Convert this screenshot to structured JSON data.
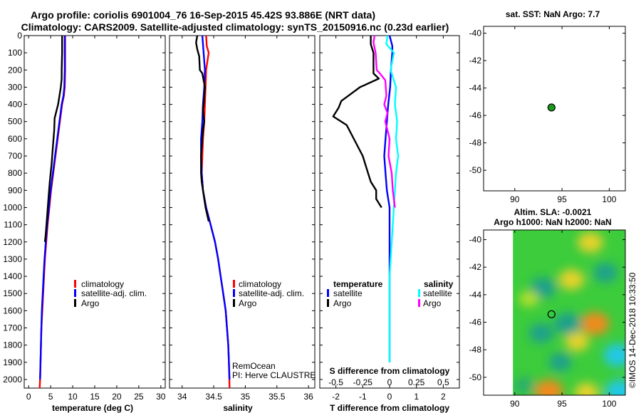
{
  "header": {
    "line1": "Argo profile: coriolis 6901004_76 16-Sep-2015 45.42S 93.886E (NRT data)",
    "line2": "Climatology: CARS2009. Satellite-adjusted climatology: synTS_20150916.nc (0.23d earlier)"
  },
  "colors": {
    "climatology": "#ff0000",
    "satellite": "#0000ff",
    "argo": "#000000",
    "sal_satellite": "#00ffff",
    "sal_argo": "#ff00ff",
    "float_marker": "#1a9a1a"
  },
  "legend": {
    "climatology": "climatology",
    "satellite_adj": "satellite-adj. clim.",
    "argo": "Argo",
    "temperature": "temperature",
    "salinity": "salinity",
    "satellite": "satellite"
  },
  "notes": {
    "remocean": "RemOcean",
    "pi": "PI: Herve CLAUSTRE",
    "credit": "©IMOS 14-Dec-2018 10:33:50",
    "sst": "sat. SST: NaN Argo: 7.7",
    "sla_line1": "Altim. SLA: -0.0021",
    "sla_line2": "Argo h1000: NaN h2000: NaN"
  },
  "chart_data": [
    {
      "type": "line",
      "panel": "temperature",
      "xlabel": "temperature (deg C)",
      "ylabel": "pressure",
      "xlim": [
        -1,
        31
      ],
      "ylim": [
        2050,
        0
      ],
      "xticks": [
        0,
        5,
        10,
        15,
        20,
        25,
        30
      ],
      "xtick_labels": [
        "0",
        "5",
        "10",
        "15",
        "20",
        "25",
        "30"
      ],
      "yticks": [
        0,
        100,
        200,
        300,
        400,
        500,
        600,
        700,
        800,
        900,
        1000,
        1100,
        1200,
        1300,
        1400,
        1500,
        1600,
        1700,
        1800,
        1900,
        2000
      ],
      "ytick_labels": [
        "0",
        "100",
        "200",
        "300",
        "400",
        "500",
        "600",
        "700",
        "800",
        "900",
        "1000",
        "1100",
        "1200",
        "1300",
        "1400",
        "1500",
        "1600",
        "1700",
        "1800",
        "1900",
        "2000"
      ],
      "series": [
        {
          "name": "climatology",
          "color_key": "climatology",
          "x": [
            8.3,
            8.3,
            8.3,
            8.2,
            8.0,
            7.6,
            7.1,
            6.6,
            6.1,
            5.6,
            5.1,
            4.7,
            4.3,
            4.0,
            3.7,
            3.5,
            3.3,
            3.1,
            2.9,
            2.8,
            2.7,
            2.6,
            2.5
          ],
          "y": [
            0,
            100,
            200,
            300,
            350,
            400,
            500,
            600,
            700,
            800,
            900,
            1000,
            1100,
            1200,
            1300,
            1400,
            1500,
            1600,
            1700,
            1800,
            1900,
            2000,
            2050
          ]
        },
        {
          "name": "satellite-adj. clim.",
          "color_key": "satellite",
          "x": [
            8.2,
            8.2,
            8.2,
            8.1,
            7.9,
            7.5,
            7.0,
            6.5,
            6.0,
            5.5,
            5.0,
            4.6,
            4.2,
            3.9,
            3.6,
            3.4,
            3.2,
            3.0,
            2.9,
            2.8,
            2.7,
            2.6
          ],
          "y": [
            0,
            100,
            200,
            300,
            350,
            400,
            500,
            600,
            700,
            800,
            900,
            1000,
            1100,
            1200,
            1300,
            1400,
            1500,
            1600,
            1700,
            1800,
            1900,
            2000
          ]
        },
        {
          "name": "Argo",
          "color_key": "argo",
          "x": [
            7.6,
            7.6,
            7.5,
            7.5,
            7.3,
            6.7,
            5.9,
            5.8,
            5.5,
            5.2,
            4.8,
            4.5,
            4.2,
            3.9,
            3.7
          ],
          "y": [
            0,
            100,
            200,
            250,
            300,
            400,
            480,
            550,
            650,
            750,
            850,
            950,
            1050,
            1150,
            1200
          ]
        }
      ],
      "legend": [
        "climatology",
        "satellite-adj. clim.",
        "Argo"
      ]
    },
    {
      "type": "line",
      "panel": "salinity",
      "xlabel": "salinity",
      "xlim": [
        33.8,
        36.1
      ],
      "ylim": [
        2050,
        0
      ],
      "xticks": [
        34,
        34.5,
        35,
        35.5,
        36
      ],
      "xtick_labels": [
        "34",
        "34.5",
        "35",
        "35.5",
        "36"
      ],
      "series": [
        {
          "name": "climatology",
          "color_key": "climatology",
          "x": [
            34.38,
            34.39,
            34.42,
            34.38,
            34.37,
            34.36,
            34.35,
            34.33,
            34.32,
            34.31,
            34.33,
            34.38,
            34.45,
            34.52,
            34.57,
            34.61,
            34.65,
            34.69,
            34.71,
            34.73,
            34.74,
            34.75
          ],
          "y": [
            0,
            60,
            100,
            200,
            300,
            400,
            500,
            600,
            700,
            800,
            900,
            1000,
            1100,
            1200,
            1300,
            1400,
            1500,
            1600,
            1700,
            1800,
            1900,
            2050
          ]
        },
        {
          "name": "satellite-adj. clim.",
          "color_key": "satellite",
          "x": [
            34.32,
            34.34,
            34.36,
            34.35,
            34.33,
            34.32,
            34.3,
            34.3,
            34.31,
            34.33,
            34.38,
            34.45,
            34.52,
            34.57,
            34.61,
            34.65,
            34.69,
            34.71,
            34.73,
            34.75
          ],
          "y": [
            0,
            100,
            200,
            300,
            400,
            500,
            600,
            700,
            800,
            900,
            1000,
            1100,
            1200,
            1300,
            1400,
            1500,
            1600,
            1700,
            1800,
            2000
          ]
        },
        {
          "name": "Argo",
          "color_key": "argo",
          "x": [
            34.24,
            34.22,
            34.24,
            34.27,
            34.28,
            34.32,
            34.36,
            34.34,
            34.33,
            34.34,
            34.35,
            34.33,
            34.32,
            34.3,
            34.3,
            34.31,
            34.33,
            34.37,
            34.42
          ],
          "y": [
            0,
            40,
            80,
            120,
            200,
            220,
            300,
            400,
            430,
            470,
            500,
            550,
            600,
            700,
            800,
            850,
            900,
            1000,
            1080
          ]
        }
      ],
      "legend": [
        "climatology",
        "satellite-adj. clim.",
        "Argo"
      ]
    },
    {
      "type": "line",
      "panel": "difference",
      "xlabel": "T difference from climatology",
      "top_axis_label": "S difference from climatology",
      "xlim": [
        -2.6,
        2.6
      ],
      "ylim": [
        2050,
        0
      ],
      "xticks": [
        -2,
        -1,
        0,
        1,
        2
      ],
      "xtick_labels": [
        "-2",
        "-1",
        "0",
        "1",
        "2"
      ],
      "s_xticks": [
        -0.5,
        -0.25,
        0,
        0.25,
        0.5
      ],
      "s_xtick_labels": [
        "-0.5",
        "-0.25",
        "0",
        "0.25",
        "0.5"
      ],
      "s_scale": 4,
      "series": [
        {
          "name": "temperature satellite",
          "quantity": "temperature",
          "color_key": "satellite",
          "x": [
            0.0,
            0.05,
            0.1,
            0.1,
            0.05,
            0.02,
            -0.05,
            -0.1,
            -0.15,
            -0.2,
            -0.15,
            -0.1,
            0.0,
            0.0,
            0.0,
            0.0,
            0.0,
            0.0,
            0.0,
            0.0,
            0.0,
            0.0
          ],
          "y": [
            0,
            30,
            60,
            100,
            200,
            300,
            400,
            500,
            600,
            700,
            800,
            900,
            1000,
            1100,
            1200,
            1300,
            1400,
            1500,
            1600,
            1700,
            1800,
            1900
          ]
        },
        {
          "name": "temperature Argo",
          "quantity": "temperature",
          "color_key": "argo",
          "x": [
            -0.7,
            -0.7,
            -0.6,
            -0.6,
            -0.4,
            -1.1,
            -1.8,
            -1.9,
            -2.1,
            -1.6,
            -1.4,
            -1.0,
            -0.8,
            -0.7,
            -0.5,
            -0.5,
            -0.3
          ],
          "y": [
            0,
            50,
            100,
            220,
            250,
            300,
            380,
            420,
            470,
            520,
            580,
            700,
            800,
            850,
            900,
            950,
            1000
          ]
        },
        {
          "name": "salinity satellite",
          "quantity": "salinity",
          "color_key": "sal_satellite",
          "x": [
            -0.02,
            -0.03,
            0.04,
            0.01,
            0.06,
            0.05,
            0.07,
            0.06,
            0.08,
            0.06,
            0.05,
            0.04,
            0.03,
            0.02,
            0.01,
            0.0,
            0.0,
            0.0,
            0.0,
            0.0,
            0.0
          ],
          "y": [
            0,
            50,
            100,
            200,
            300,
            400,
            500,
            600,
            700,
            800,
            900,
            1000,
            1100,
            1200,
            1300,
            1400,
            1500,
            1600,
            1700,
            1800,
            1900
          ]
        },
        {
          "name": "salinity Argo",
          "quantity": "salinity",
          "color_key": "sal_argo",
          "x": [
            -0.14,
            -0.15,
            -0.13,
            -0.12,
            -0.09,
            -0.04,
            -0.03,
            -0.05,
            -0.02,
            -0.04,
            0.0,
            -0.01,
            0.02,
            0.03,
            0.05
          ],
          "y": [
            0,
            40,
            100,
            200,
            220,
            260,
            350,
            400,
            450,
            500,
            600,
            700,
            800,
            900,
            1000
          ]
        }
      ],
      "legend_temperature": [
        "satellite",
        "Argo"
      ],
      "legend_salinity": [
        "satellite",
        "Argo"
      ]
    },
    {
      "type": "scatter",
      "panel": "sst_map",
      "title": "sat. SST: NaN Argo: 7.7",
      "xlim": [
        86.7,
        101.7
      ],
      "ylim": [
        -51.5,
        -39.5
      ],
      "xticks": [
        90,
        95,
        100
      ],
      "xtick_labels": [
        "90",
        "95",
        "100"
      ],
      "yticks": [
        -40,
        -42,
        -44,
        -46,
        -48,
        -50
      ],
      "ytick_labels": [
        "-40",
        "-42",
        "-44",
        "-46",
        "-48",
        "-50"
      ],
      "points": [
        {
          "lon": 93.886,
          "lat": -45.42
        }
      ]
    },
    {
      "type": "heatmap",
      "panel": "sla_map",
      "title": "Altim. SLA: -0.0021",
      "subtitle": "Argo h1000: NaN h2000: NaN",
      "xlim": [
        86.7,
        101.7
      ],
      "ylim": [
        -51.3,
        -39.3
      ],
      "xticks": [
        90,
        95,
        100
      ],
      "xtick_labels": [
        "90",
        "95",
        "100"
      ],
      "yticks": [
        -40,
        -42,
        -44,
        -46,
        -48,
        -50
      ],
      "ytick_labels": [
        "-40",
        "-42",
        "-44",
        "-46",
        "-48",
        "-50"
      ],
      "data_lon_range": [
        89.8,
        101.7
      ],
      "points": [
        {
          "lon": 93.886,
          "lat": -45.42
        }
      ],
      "blobs": [
        {
          "lon": 98.5,
          "lat": -46.1,
          "value": 1.0
        },
        {
          "lon": 96.0,
          "lat": -42.9,
          "value": 0.8
        },
        {
          "lon": 98.0,
          "lat": -40.2,
          "value": 0.8
        },
        {
          "lon": 96.6,
          "lat": -47.4,
          "value": 0.7
        },
        {
          "lon": 93.6,
          "lat": -51.0,
          "value": 1.0
        },
        {
          "lon": 97.6,
          "lat": -51.1,
          "value": 0.7
        },
        {
          "lon": 93.0,
          "lat": -43.5,
          "value": -0.8
        },
        {
          "lon": 95.6,
          "lat": -46.1,
          "value": -0.9
        },
        {
          "lon": 92.8,
          "lat": -46.8,
          "value": -0.7
        },
        {
          "lon": 99.6,
          "lat": -42.4,
          "value": -0.7
        },
        {
          "lon": 100.9,
          "lat": -48.4,
          "value": -1.0
        },
        {
          "lon": 101.1,
          "lat": -51.0,
          "value": -1.0
        },
        {
          "lon": 94.8,
          "lat": -48.9,
          "value": -0.6
        },
        {
          "lon": 91.0,
          "lat": -50.6,
          "value": -0.5
        },
        {
          "lon": 91.5,
          "lat": -44.3,
          "value": 0.4
        }
      ]
    }
  ]
}
